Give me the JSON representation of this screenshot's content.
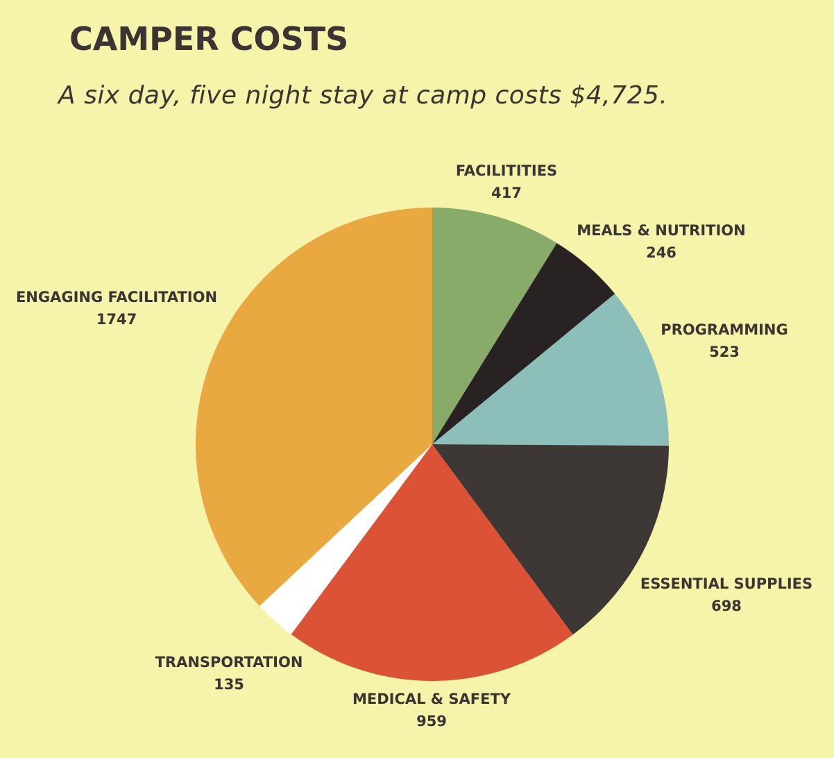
{
  "chart_data": {
    "type": "pie",
    "title": "CAMPER COSTS",
    "subtitle": "A six day, five night stay at camp costs $4,725.",
    "start_angle": "12 o'clock",
    "direction": "clockwise",
    "slices": [
      {
        "label": "FACILITITIES",
        "value": 417,
        "color": "#88ab6a"
      },
      {
        "label": "MEALS & NUTRITION",
        "value": 246,
        "color": "#282322"
      },
      {
        "label": "PROGRAMMING",
        "value": 523,
        "color": "#8cbfb9"
      },
      {
        "label": "ESSENTIAL SUPPLIES",
        "value": 698,
        "color": "#3d3735"
      },
      {
        "label": "MEDICAL & SAFETY",
        "value": 959,
        "color": "#db5236"
      },
      {
        "label": "TRANSPORTATION",
        "value": 135,
        "color": "#ffffff"
      },
      {
        "label": "ENGAGING FACILITATION",
        "value": 1747,
        "color": "#e9a840"
      }
    ]
  }
}
